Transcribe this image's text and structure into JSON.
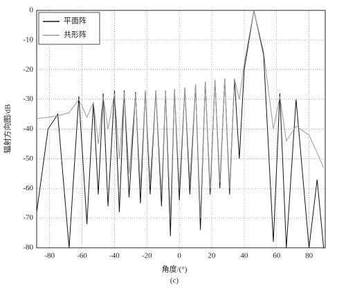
{
  "chart_data": {
    "type": "line",
    "y_label": "辐射方向图/dB",
    "x_label": "角度/(°)",
    "caption": "(c)",
    "x": [
      -88,
      -81,
      -75,
      -68,
      -62,
      -57,
      -53,
      -50,
      -47,
      -44,
      -40,
      -37,
      -34,
      -31,
      -27,
      -24,
      -21,
      -18,
      -14.5,
      -11,
      -8.5,
      -5.5,
      -3,
      0,
      3.4,
      6.5,
      10,
      13,
      16,
      19,
      22,
      25,
      28,
      31,
      34,
      37,
      40,
      46,
      52,
      58,
      62,
      66,
      72,
      80,
      85,
      89
    ],
    "series": [
      {
        "name": "平面阵",
        "color": "#111111",
        "values": [
          -68,
          -40,
          -35,
          -80,
          -29,
          -72,
          -31,
          -62,
          -28,
          -66,
          -27,
          -68,
          -27,
          -63,
          -27.5,
          -65,
          -27,
          -62,
          -27,
          -66,
          -27,
          -76,
          -26.5,
          -64,
          -26,
          -62,
          -25,
          -74,
          -24,
          -62,
          -23.5,
          -60,
          -23,
          -62,
          -23,
          -50,
          -20,
          0,
          -15,
          -78,
          -28,
          -80,
          -30,
          -80,
          -57,
          -80
        ]
      },
      {
        "name": "共形阵",
        "color": "#999999",
        "values": [
          -36.5,
          -36,
          -35.5,
          -34.5,
          -30,
          -36,
          -31,
          -45,
          -29,
          -40,
          -28,
          -50,
          -27.5,
          -55,
          -28,
          -60,
          -27,
          -58,
          -27,
          -62,
          -27,
          -70,
          -26.5,
          -60,
          -26,
          -58,
          -25,
          -70,
          -24,
          -60,
          -23.5,
          -58,
          -23,
          -60,
          -23,
          -30,
          -18,
          0,
          -14,
          -40,
          -29,
          -44,
          -39,
          -42,
          -48,
          -53
        ]
      }
    ],
    "xlim": [
      -88,
      90
    ],
    "ylim": [
      -80,
      0
    ],
    "xticks": [
      -80,
      -60,
      -40,
      -20,
      0,
      20,
      40,
      60,
      80
    ],
    "yticks": [
      -80,
      -70,
      -60,
      -50,
      -40,
      -30,
      -20,
      -10,
      0
    ],
    "grid": true,
    "legend": "upper left"
  }
}
